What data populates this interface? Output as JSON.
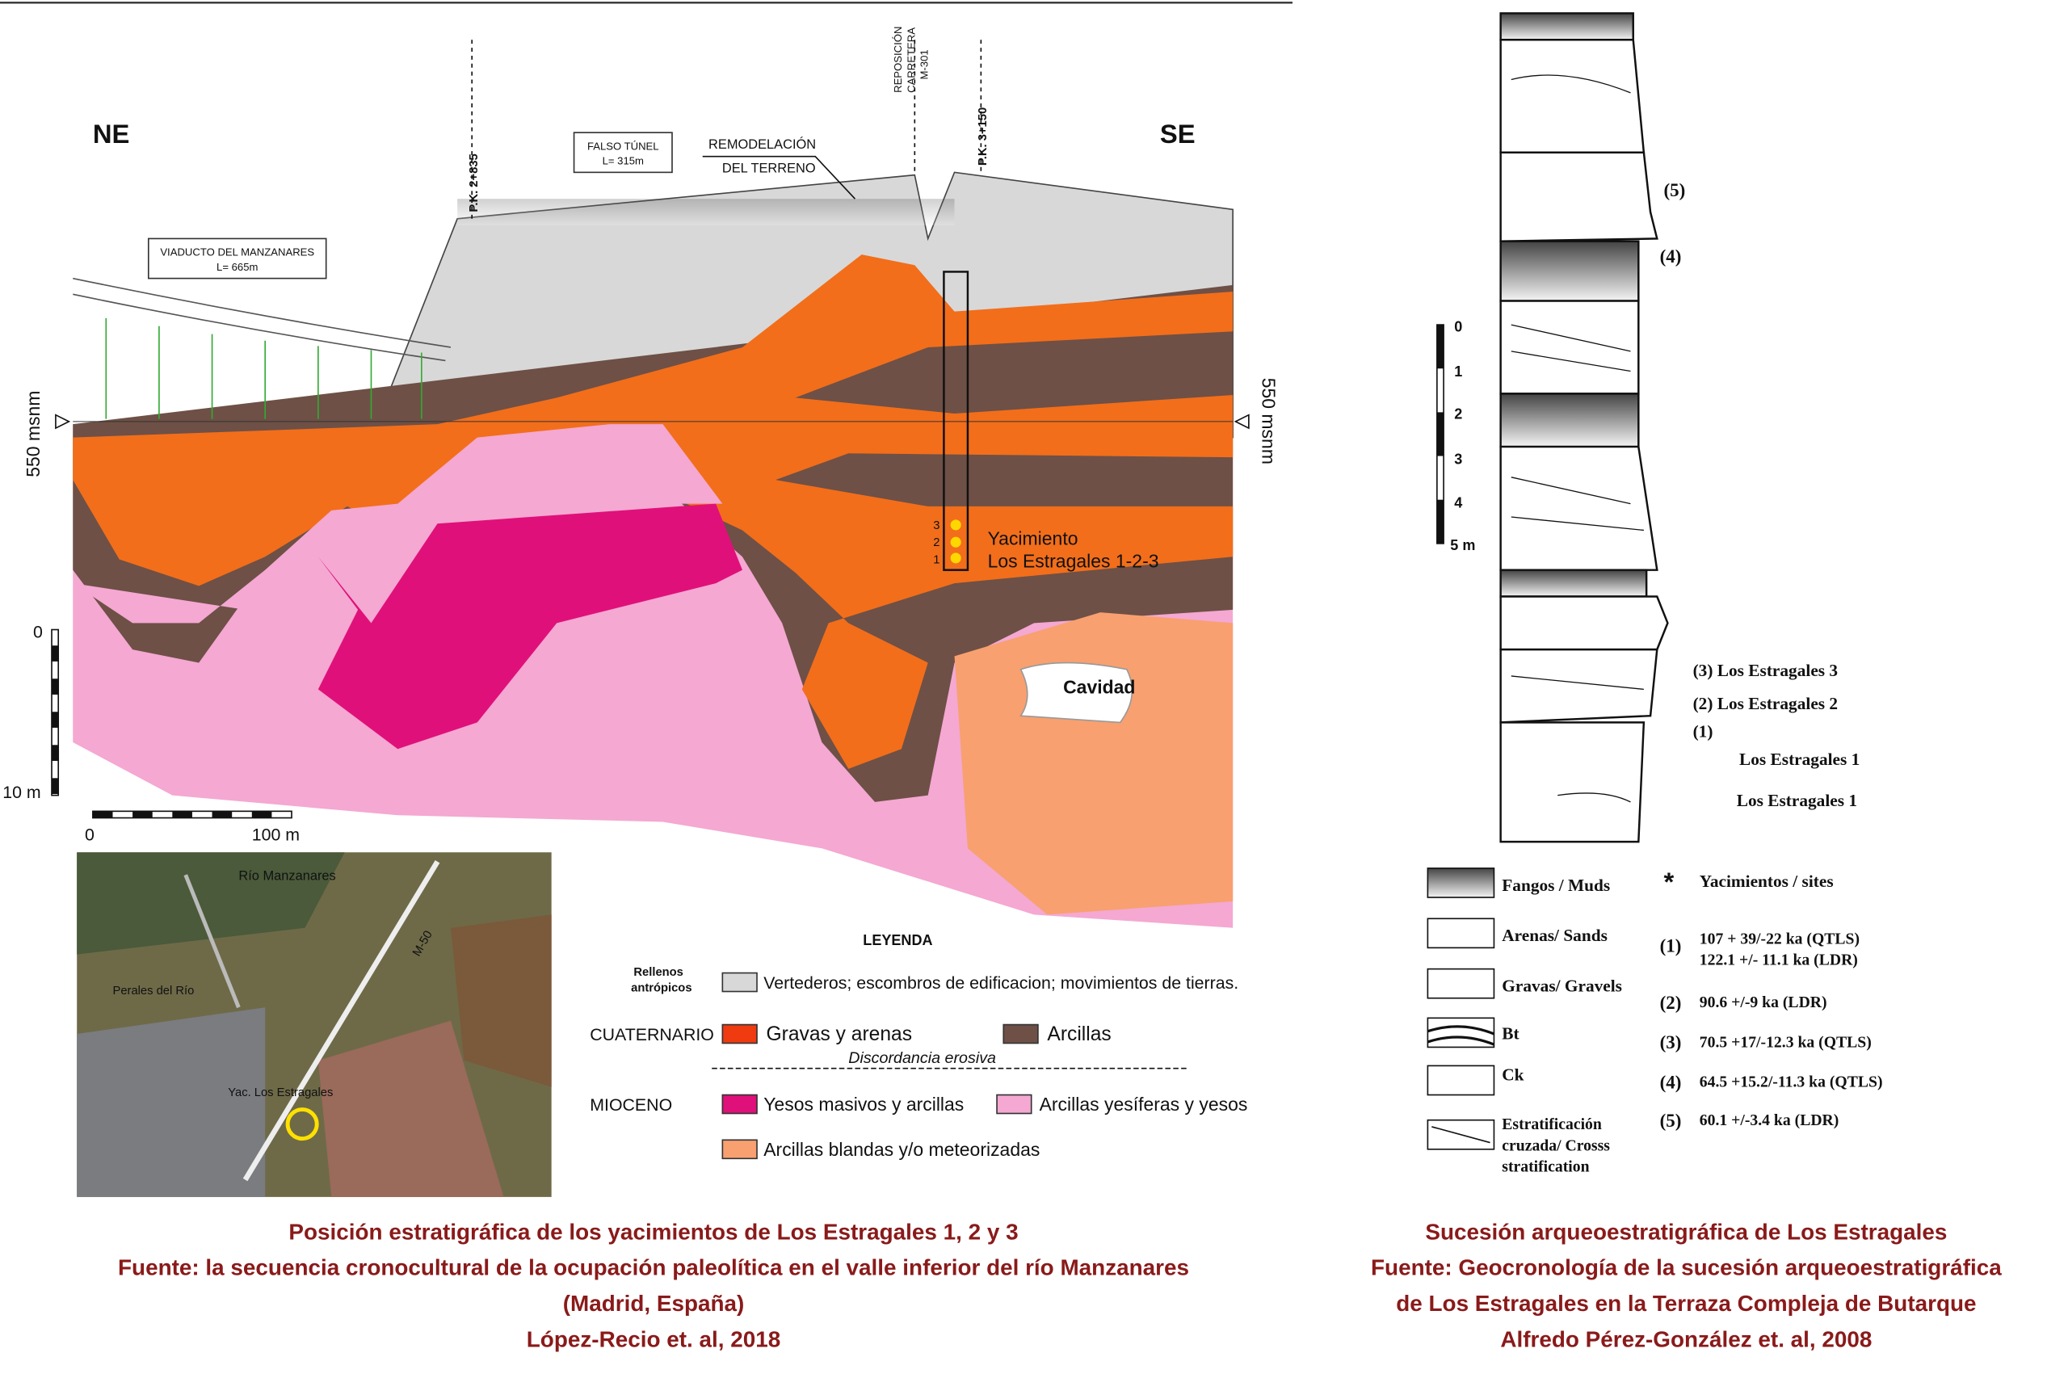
{
  "section": {
    "orientation_left": "NE",
    "orientation_right": "SE",
    "pk_left": "P.K. 2+835",
    "pk_right": "P.K. 3+150",
    "road": [
      "REPOSICIÓN",
      "CARRETERA",
      "M-301"
    ],
    "tunnel": [
      "FALSO TÚNEL",
      "L= 315m"
    ],
    "remodel": [
      "REMODELACIÓN",
      "DEL TERRENO"
    ],
    "viaduct": [
      "VIADUCTO DEL MANZANARES",
      "L= 665m"
    ],
    "datum_left": "550 msnm",
    "datum_right": "550 msnm",
    "site_levels": [
      "3",
      "2",
      "1"
    ],
    "site": [
      "Yacimiento",
      "Los Estragales 1-2-3"
    ],
    "cavity": "Cavidad",
    "vscale": [
      "0",
      "10 m"
    ],
    "hscale": [
      "0",
      "100 m"
    ]
  },
  "map": {
    "river": "Río Manzanares",
    "road": "M-50",
    "town": "Perales del Río",
    "site": "Yac. Los Estragales"
  },
  "legend": {
    "title": "LEYENDA",
    "anthropic": [
      "Rellenos",
      "antrópicos"
    ],
    "anthropic_item": "Vertederos; escombros de edificacion; movimientos de tierras.",
    "quaternary": "CUATERNARIO",
    "gravels": "Gravas y arenas",
    "clays": "Arcillas",
    "discordance": "Discordancia erosiva",
    "miocene": "MIOCENO",
    "gypsum": "Yesos masivos y arcillas",
    "gypsum_clays": "Arcillas yesíferas y yesos",
    "soft_clays": "Arcillas blandas y/o meteorizadas"
  },
  "caption_left": [
    "Posición estratigráfica de los yacimientos de Los Estragales 1, 2 y 3",
    "Fuente: la secuencia cronocultural de la ocupación paleolítica en el valle inferior del río Manzanares",
    "(Madrid, España)",
    "López-Recio et. al, 2018"
  ],
  "column": {
    "scale": [
      "0",
      "1",
      "2",
      "3",
      "4",
      "5 m"
    ],
    "labels": [
      "(5)",
      "(4)",
      "(3) Los Estragales 3",
      "(2) Los Estragales 2",
      "(1)",
      "Los Estragales 1",
      "Los Estragales 1"
    ]
  },
  "column_legend": {
    "items": [
      "Fangos / Muds",
      "Arenas/ Sands",
      "Gravas/ Gravels",
      "Bt",
      "Ck"
    ],
    "cross": [
      "Estratificación",
      "cruzada/ Crosss",
      "stratification"
    ],
    "sites": "Yacimientos / sites",
    "dates": [
      [
        "(1)",
        "107 + 39/-22 ka (QTLS)",
        "122.1 +/- 11.1 ka (LDR)"
      ],
      [
        "(2)",
        "90.6 +/-9 ka (LDR)"
      ],
      [
        "(3)",
        "70.5 +17/-12.3 ka (QTLS)"
      ],
      [
        "(4)",
        "64.5 +15.2/-11.3 ka (QTLS)"
      ],
      [
        "(5)",
        "60.1 +/-3.4 ka (LDR)"
      ]
    ]
  },
  "caption_right": [
    "Sucesión arqueoestratigráfica de Los Estragales",
    "Fuente: Geocronología de la sucesión arqueoestratigráfica",
    "de Los Estragales en la Terraza Compleja de Butarque",
    "Alfredo Pérez-González et. al, 2008"
  ]
}
